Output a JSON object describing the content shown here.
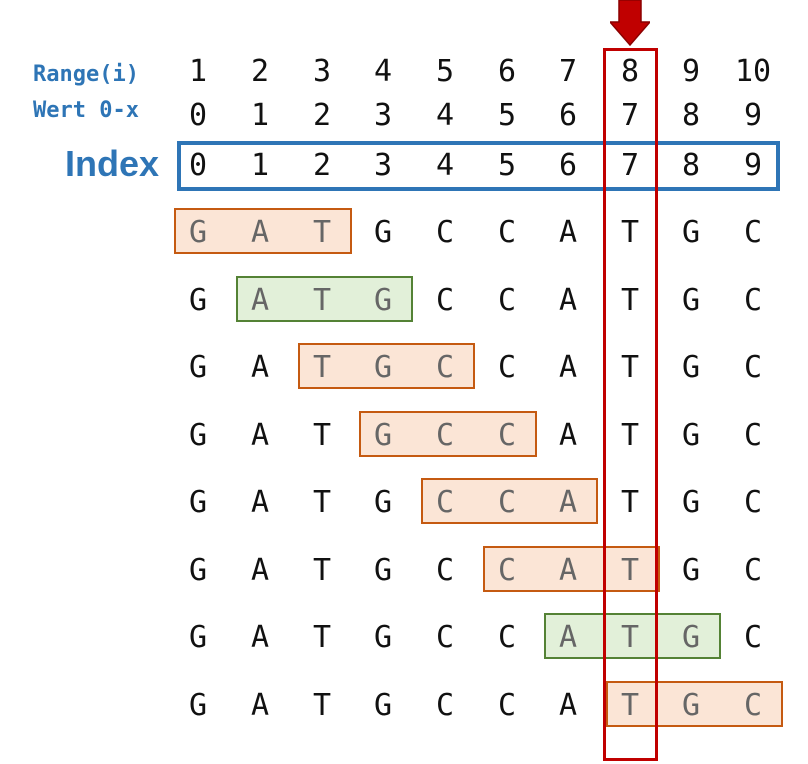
{
  "labels": {
    "range": "Range(i)",
    "wert": "Wert 0-x",
    "index": "Index"
  },
  "header_rows": {
    "range": [
      "1",
      "2",
      "3",
      "4",
      "5",
      "6",
      "7",
      "8",
      "9",
      "10"
    ],
    "wert": [
      "0",
      "1",
      "2",
      "3",
      "4",
      "5",
      "6",
      "7",
      "8",
      "9"
    ],
    "index": [
      "0",
      "1",
      "2",
      "3",
      "4",
      "5",
      "6",
      "7",
      "8",
      "9"
    ]
  },
  "sequence": [
    "G",
    "A",
    "T",
    "G",
    "C",
    "C",
    "A",
    "T",
    "G",
    "C"
  ],
  "windows": [
    {
      "start": 0,
      "codon": "GAT",
      "color": "orange"
    },
    {
      "start": 1,
      "codon": "ATG",
      "color": "green"
    },
    {
      "start": 2,
      "codon": "TGC",
      "color": "orange"
    },
    {
      "start": 3,
      "codon": "GCC",
      "color": "orange"
    },
    {
      "start": 4,
      "codon": "CCA",
      "color": "orange"
    },
    {
      "start": 5,
      "codon": "CAT",
      "color": "orange"
    },
    {
      "start": 6,
      "codon": "ATG",
      "color": "green"
    },
    {
      "start": 7,
      "codon": "TGC",
      "color": "orange"
    }
  ],
  "window_size": 3,
  "highlighted_index": 7,
  "colors": {
    "label_blue": "#2e75b6",
    "window_orange_border": "#c55a11",
    "window_orange_fill": "#fbe5d6",
    "window_green_border": "#548235",
    "window_green_fill": "#e2f0d9",
    "highlight_red": "#c00000"
  },
  "icons": {
    "arrow": "arrow-down-icon"
  }
}
